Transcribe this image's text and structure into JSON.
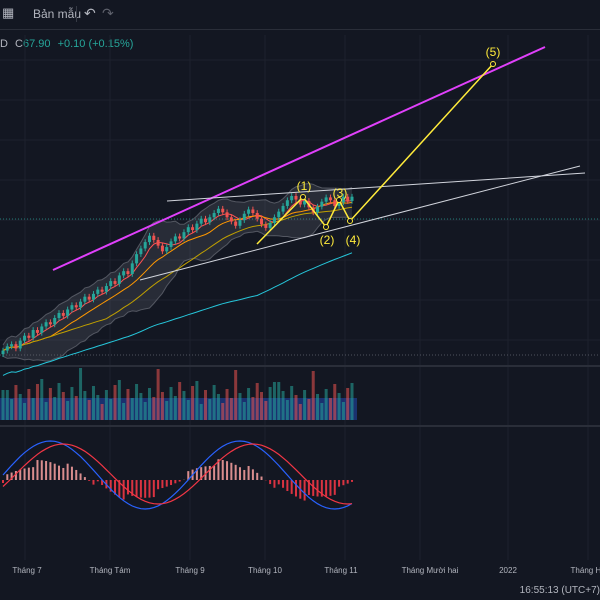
{
  "toolbar": {
    "template_icon": "template-icon",
    "template_label": "Bản mẫu",
    "undo_icon": "undo-icon",
    "redo_icon": "redo-icon"
  },
  "legend": {
    "prefix": "D",
    "close_label": "C",
    "close_value": "67.90",
    "change": "+0.10 (+0.15%)"
  },
  "x_axis": {
    "ticks": [
      "Tháng 7",
      "Tháng Tám",
      "Tháng 9",
      "Tháng 10",
      "Tháng 11",
      "Tháng Mười hai",
      "2022",
      "Tháng Hai"
    ]
  },
  "waves": [
    "(1)",
    "(2)",
    "(3)",
    "(4)",
    "(5)"
  ],
  "clock": "16:55:13 (UTC+7)",
  "colors": {
    "up": "#26a69a",
    "down": "#ef5350",
    "channel": "#e040fb",
    "projection": "#ffeb3b",
    "trendline": "#d1d4dc",
    "macd": "#2962ff",
    "signal": "#f23645"
  },
  "chart_data": {
    "type": "line",
    "title": "",
    "candles_close": [
      46.2,
      46.8,
      47.1,
      46.5,
      47.6,
      48.3,
      48.0,
      49.1,
      48.7,
      49.6,
      50.2,
      49.9,
      50.8,
      51.5,
      51.1,
      52.0,
      52.6,
      52.3,
      53.1,
      53.8,
      53.4,
      54.2,
      54.8,
      54.5,
      55.3,
      56.0,
      55.6,
      56.8,
      57.4,
      57.0,
      58.5,
      59.8,
      60.6,
      61.5,
      62.4,
      61.8,
      61.0,
      60.2,
      60.8,
      61.6,
      62.3,
      62.0,
      62.9,
      63.6,
      63.2,
      64.1,
      64.8,
      64.3,
      65.0,
      65.6,
      66.2,
      65.7,
      65.0,
      64.4,
      63.8,
      64.6,
      65.5,
      66.1,
      65.6,
      64.8,
      64.0,
      63.5,
      64.2,
      65.0,
      65.8,
      66.6,
      67.4,
      68.0,
      67.5,
      66.8,
      67.3,
      66.4,
      65.7,
      66.5,
      67.2,
      67.8,
      67.4,
      66.6,
      67.1,
      67.9,
      67.3,
      67.9
    ],
    "wave_targets": {
      "wave_5_price": 86.5
    }
  }
}
